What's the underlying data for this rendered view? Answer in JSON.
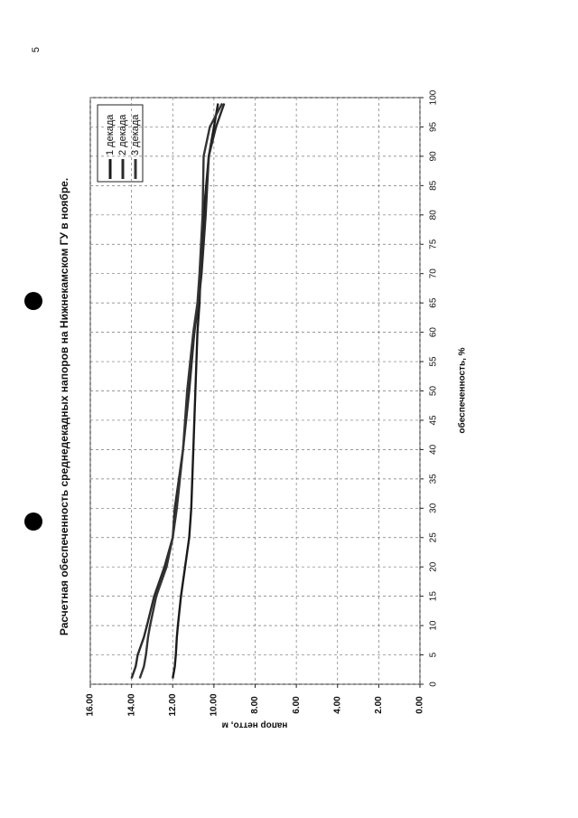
{
  "page_number": "5",
  "chart_data": {
    "type": "line",
    "title": "Расчетная обеспеченность среднедекадных напоров на Нижнекамском ГУ в ноябре.",
    "x_label": "обеспеченность, %",
    "y_label": "напор нетто, м",
    "x": [
      1,
      3,
      5,
      8,
      10,
      15,
      20,
      25,
      30,
      40,
      50,
      60,
      65,
      70,
      80,
      90,
      95,
      99
    ],
    "series": [
      {
        "name": "1 декада",
        "color": "#1a1a1a",
        "values": [
          12.0,
          11.9,
          11.85,
          11.8,
          11.75,
          11.6,
          11.4,
          11.2,
          11.1,
          11.0,
          10.9,
          10.8,
          10.7,
          10.65,
          10.5,
          10.25,
          10.0,
          9.8
        ]
      },
      {
        "name": "2 декада",
        "color": "#2a2a2a",
        "values": [
          14.0,
          13.8,
          13.7,
          13.4,
          13.25,
          12.9,
          12.4,
          12.0,
          11.9,
          11.5,
          11.2,
          10.95,
          10.75,
          10.6,
          10.4,
          10.25,
          9.9,
          9.5
        ]
      },
      {
        "name": "3 декада",
        "color": "#333333",
        "values": [
          13.6,
          13.4,
          13.3,
          13.2,
          13.1,
          12.8,
          12.3,
          12.0,
          11.8,
          11.5,
          11.3,
          11.0,
          10.8,
          10.7,
          10.55,
          10.5,
          10.2,
          9.6
        ]
      }
    ],
    "xlim": [
      0,
      100
    ],
    "xticks": [
      0,
      5,
      10,
      15,
      20,
      25,
      30,
      35,
      40,
      45,
      50,
      55,
      60,
      65,
      70,
      75,
      80,
      85,
      90,
      95,
      100
    ],
    "ylim": [
      0,
      16
    ],
    "yticks": [
      {
        "value": 0,
        "label": "0.00"
      },
      {
        "value": 2,
        "label": "2.00"
      },
      {
        "value": 4,
        "label": "4.00"
      },
      {
        "value": 6,
        "label": "6.00"
      },
      {
        "value": 8,
        "label": "8.00"
      },
      {
        "value": 10,
        "label": "10.00"
      },
      {
        "value": 12,
        "label": "12.00"
      },
      {
        "value": 14,
        "label": "14.00"
      },
      {
        "value": 16,
        "label": "16.00"
      }
    ],
    "grid": true
  }
}
